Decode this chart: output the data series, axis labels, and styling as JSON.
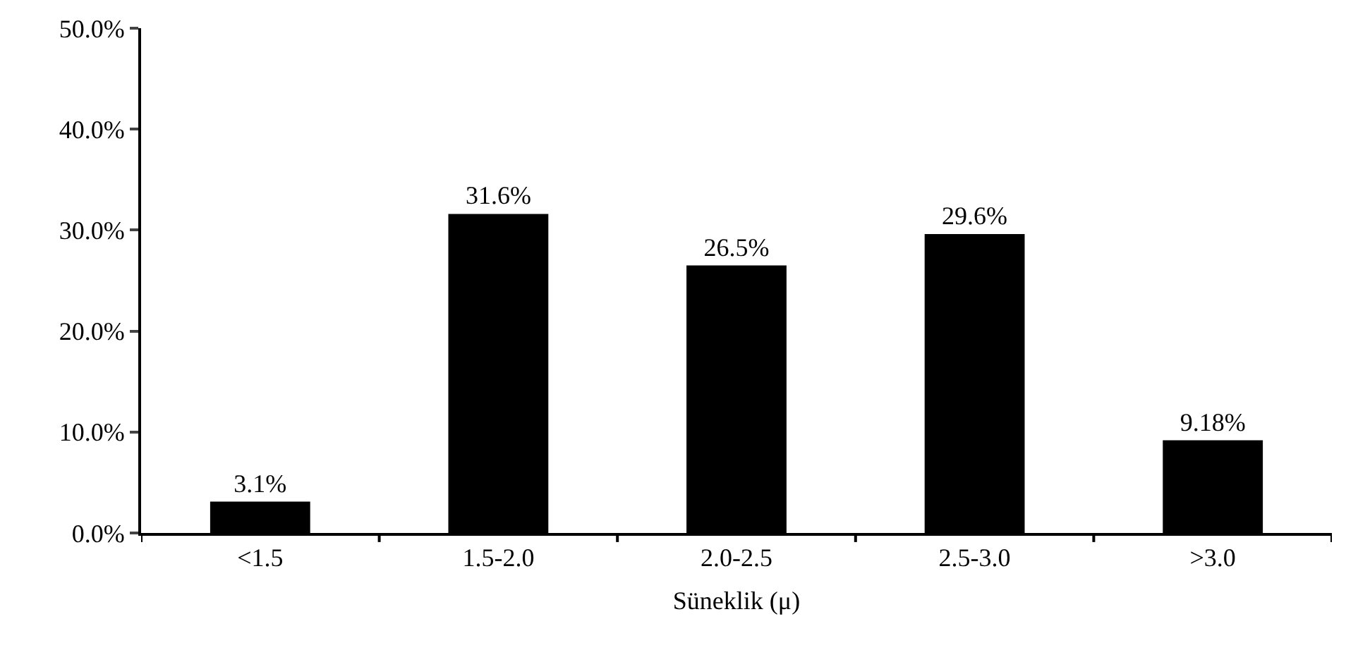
{
  "chart_data": {
    "type": "bar",
    "xlabel": "Süneklik (μ)",
    "categories": [
      "<1.5",
      "1.5-2.0",
      "2.0-2.5",
      "2.5-3.0",
      ">3.0"
    ],
    "values": [
      3.1,
      31.6,
      26.5,
      29.6,
      9.18
    ],
    "value_labels": [
      "3.1%",
      "31.6%",
      "26.5%",
      "29.6%",
      "9.18%"
    ],
    "color": "#000000",
    "ylim": [
      0,
      50
    ],
    "yticks": [
      {
        "value": 0,
        "label": "0.0%"
      },
      {
        "value": 10,
        "label": "10.0%"
      },
      {
        "value": 20,
        "label": "20.0%"
      },
      {
        "value": 30,
        "label": "30.0%"
      },
      {
        "value": 40,
        "label": "40.0%"
      },
      {
        "value": 50,
        "label": "50.0%"
      }
    ],
    "legend": false
  }
}
